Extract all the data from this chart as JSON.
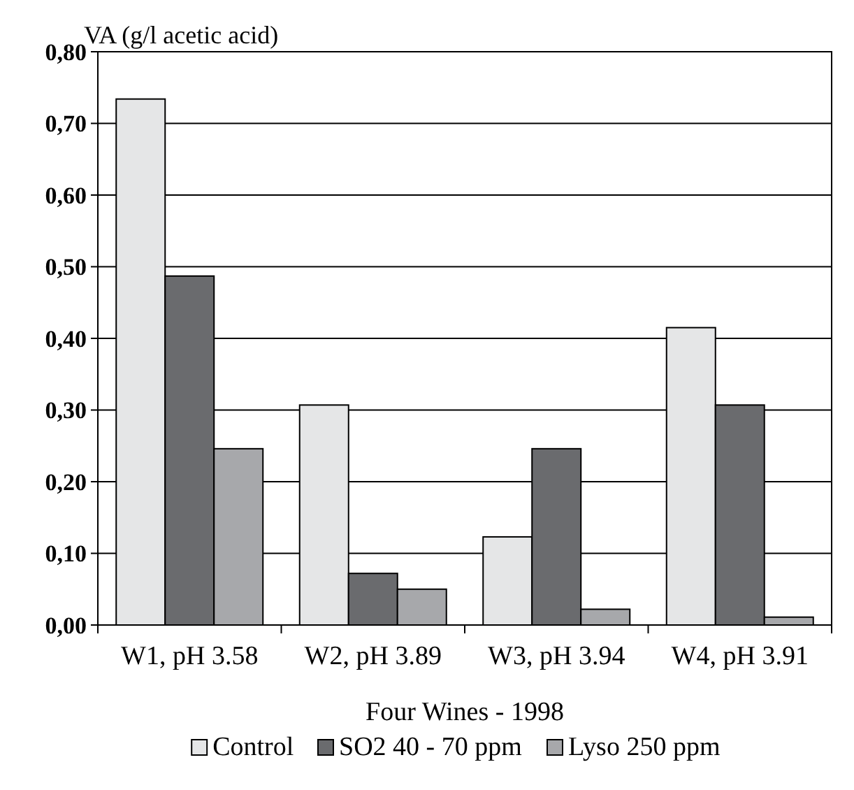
{
  "chart_data": {
    "type": "bar",
    "ylabel": "VA (g/l acetic acid)",
    "xlabel": "Four Wines - 1998",
    "categories": [
      "W1, pH 3.58",
      "W2, pH 3.89",
      "W3, pH 3.94",
      "W4, pH 3.91"
    ],
    "series": [
      {
        "name": "Control",
        "color": "#e5e6e7",
        "values": [
          0.734,
          0.307,
          0.123,
          0.415
        ]
      },
      {
        "name": "SO2 40 - 70 ppm",
        "color": "#6a6b6e",
        "values": [
          0.487,
          0.072,
          0.246,
          0.307
        ]
      },
      {
        "name": "Lyso 250 ppm",
        "color": "#a7a8ab",
        "values": [
          0.246,
          0.05,
          0.022,
          0.011
        ]
      }
    ],
    "ylim": [
      0,
      0.8
    ],
    "yticks": [
      {
        "value": 0,
        "label": "0,00"
      },
      {
        "value": 0.1,
        "label": "0,10"
      },
      {
        "value": 0.2,
        "label": "0,20"
      },
      {
        "value": 0.3,
        "label": "0,30"
      },
      {
        "value": 0.4,
        "label": "0,40"
      },
      {
        "value": 0.5,
        "label": "0,50"
      },
      {
        "value": 0.6,
        "label": "0,60"
      },
      {
        "value": 0.7,
        "label": "0,70"
      },
      {
        "value": 0.8,
        "label": "0,80"
      }
    ],
    "grid": "y",
    "legend": "bottom"
  }
}
